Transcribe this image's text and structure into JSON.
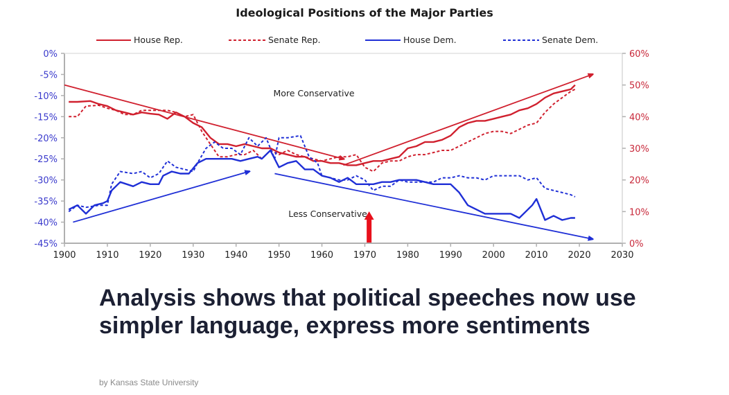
{
  "article": {
    "headline": "Analysis shows that political speeches now use simpler language, express more sentiments",
    "byline": "by Kansas State University"
  },
  "colors": {
    "republican": "#d0202e",
    "democrat": "#1f2fd6",
    "left_axis_text": "#3a3acc",
    "right_axis_text": "#c8283a",
    "axis": "#b0b0b0",
    "marker_arrow": "#e8101c"
  },
  "chart_data": {
    "type": "line",
    "title": "Ideological Positions of the Major Parties",
    "xlabel": "",
    "ylabel": "",
    "xlim": [
      1900,
      2030
    ],
    "ylim_left": [
      -45,
      0
    ],
    "ylim_right": [
      0,
      60
    ],
    "x_ticks": [
      "1900",
      "1910",
      "1920",
      "1930",
      "1940",
      "1950",
      "1960",
      "1970",
      "1980",
      "1990",
      "2000",
      "2010",
      "2020",
      "2030"
    ],
    "y_ticks_left": [
      "0%",
      "-5%",
      "-10%",
      "-15%",
      "-20%",
      "-25%",
      "-30%",
      "-35%",
      "-40%",
      "-45%"
    ],
    "y_ticks_right": [
      "60%",
      "50%",
      "40%",
      "30%",
      "20%",
      "10%",
      "0%"
    ],
    "grid": false,
    "legend_position": "top",
    "legend": [
      {
        "name": "House Rep.",
        "style": "solid",
        "party": "rep"
      },
      {
        "name": "Senate Rep.",
        "style": "dashed",
        "party": "rep"
      },
      {
        "name": "House Dem.",
        "style": "solid",
        "party": "dem"
      },
      {
        "name": "Senate Dem.",
        "style": "dashed",
        "party": "dem"
      }
    ],
    "series": [
      {
        "name": "House Rep.",
        "style": "solid",
        "party": "rep",
        "x": [
          1901,
          1903,
          1906,
          1908,
          1910,
          1912,
          1914,
          1916,
          1918,
          1920,
          1922,
          1924,
          1926,
          1928,
          1930,
          1932,
          1934,
          1936,
          1938,
          1940,
          1942,
          1944,
          1946,
          1948,
          1950,
          1952,
          1954,
          1956,
          1958,
          1960,
          1962,
          1964,
          1966,
          1968,
          1970,
          1972,
          1974,
          1976,
          1978,
          1980,
          1982,
          1984,
          1986,
          1988,
          1990,
          1992,
          1994,
          1996,
          1998,
          2000,
          2002,
          2004,
          2006,
          2008,
          2010,
          2012,
          2014,
          2016,
          2018,
          2019
        ],
        "y": [
          -11.5,
          -11.5,
          -11.3,
          -12,
          -12.5,
          -13.5,
          -14,
          -14.5,
          -14,
          -14.3,
          -14.5,
          -15.5,
          -14,
          -15,
          -16.5,
          -17.5,
          -20,
          -21.5,
          -21.5,
          -22,
          -21.5,
          -22,
          -22.5,
          -22.5,
          -23.5,
          -24,
          -24.5,
          -24.5,
          -25.5,
          -25.5,
          -26,
          -26,
          -26.5,
          -26.5,
          -26,
          -25.5,
          -25.5,
          -25,
          -24.5,
          -22.5,
          -22,
          -21,
          -21,
          -20.5,
          -19.5,
          -17.5,
          -16.5,
          -16,
          -16,
          -15.5,
          -15,
          -14.5,
          -13.5,
          -13,
          -12,
          -10.5,
          -9.5,
          -9,
          -8.5,
          -7.5
        ]
      },
      {
        "name": "Senate Rep.",
        "style": "dashed",
        "party": "rep",
        "x": [
          1901,
          1903,
          1905,
          1908,
          1910,
          1912,
          1914,
          1916,
          1918,
          1920,
          1922,
          1924,
          1926,
          1928,
          1930,
          1932,
          1934,
          1936,
          1938,
          1940,
          1942,
          1944,
          1946,
          1948,
          1950,
          1952,
          1954,
          1956,
          1958,
          1960,
          1962,
          1964,
          1966,
          1968,
          1970,
          1972,
          1974,
          1976,
          1978,
          1980,
          1982,
          1984,
          1986,
          1988,
          1990,
          1992,
          1994,
          1996,
          1998,
          2000,
          2002,
          2004,
          2006,
          2008,
          2010,
          2012,
          2014,
          2016,
          2018,
          2019
        ],
        "y": [
          -15,
          -15,
          -12.5,
          -12.3,
          -13,
          -13.5,
          -14.5,
          -14.5,
          -13.5,
          -13.5,
          -13.5,
          -13.5,
          -14,
          -15,
          -14.5,
          -18.5,
          -21.5,
          -24.5,
          -24.5,
          -24,
          -24,
          -23,
          -25,
          -23,
          -24,
          -23,
          -24,
          -24.5,
          -25,
          -25.5,
          -25,
          -24.5,
          -24.5,
          -24,
          -27,
          -28,
          -26,
          -25.5,
          -25.5,
          -24.5,
          -24,
          -24,
          -23.5,
          -23,
          -23,
          -22,
          -21,
          -20,
          -19,
          -18.5,
          -18.5,
          -19,
          -18,
          -17,
          -16.5,
          -14,
          -12,
          -10.5,
          -9,
          -8.5
        ]
      },
      {
        "name": "House Dem.",
        "style": "solid",
        "party": "dem",
        "x": [
          1901,
          1903,
          1905,
          1907,
          1909,
          1910,
          1911,
          1913,
          1916,
          1918,
          1920,
          1922,
          1923,
          1925,
          1927,
          1929,
          1931,
          1933,
          1935,
          1937,
          1939,
          1941,
          1943,
          1945,
          1946,
          1948,
          1950,
          1952,
          1954,
          1956,
          1958,
          1960,
          1962,
          1964,
          1966,
          1968,
          1970,
          1972,
          1974,
          1976,
          1978,
          1980,
          1982,
          1984,
          1986,
          1988,
          1990,
          1992,
          1994,
          1996,
          1998,
          2000,
          2002,
          2004,
          2006,
          2008,
          2009,
          2010,
          2012,
          2014,
          2016,
          2018,
          2019
        ],
        "y": [
          -37,
          -36,
          -38,
          -36,
          -35.5,
          -35,
          -32.5,
          -30.5,
          -31.5,
          -30.5,
          -31,
          -31,
          -29,
          -28,
          -28.5,
          -28.5,
          -26,
          -25,
          -25,
          -25,
          -25,
          -25.5,
          -25,
          -24.5,
          -25,
          -23,
          -27,
          -26,
          -25.5,
          -27.5,
          -27.5,
          -29,
          -29.5,
          -30.5,
          -29.5,
          -31,
          -31,
          -31,
          -30.5,
          -30.5,
          -30,
          -30,
          -30,
          -30.5,
          -31,
          -31,
          -31,
          -33,
          -36,
          -37,
          -38,
          -38,
          -38,
          -38,
          -39,
          -37,
          -36,
          -34.5,
          -39.5,
          -38.5,
          -39.5,
          -39,
          -39
        ]
      },
      {
        "name": "Senate Dem.",
        "style": "dashed",
        "party": "dem",
        "x": [
          1901,
          1903,
          1905,
          1908,
          1910,
          1911,
          1913,
          1916,
          1918,
          1920,
          1922,
          1924,
          1926,
          1928,
          1930,
          1931,
          1933,
          1935,
          1937,
          1939,
          1941,
          1943,
          1945,
          1947,
          1949,
          1950,
          1952,
          1955,
          1957,
          1959,
          1960,
          1962,
          1964,
          1966,
          1968,
          1970,
          1972,
          1974,
          1976,
          1978,
          1980,
          1982,
          1984,
          1986,
          1988,
          1990,
          1992,
          1994,
          1996,
          1998,
          2000,
          2002,
          2004,
          2006,
          2008,
          2010,
          2012,
          2014,
          2016,
          2018,
          2019
        ],
        "y": [
          -37.5,
          -36,
          -36.5,
          -36,
          -36,
          -31,
          -28,
          -28.5,
          -28,
          -29.5,
          -28.5,
          -25.5,
          -27,
          -27.5,
          -28,
          -26,
          -22.5,
          -21,
          -22.5,
          -22.5,
          -24,
          -20,
          -22,
          -20,
          -25,
          -20,
          -20,
          -19.5,
          -24.5,
          -26,
          -29,
          -29.5,
          -30,
          -30,
          -29,
          -30,
          -32.5,
          -31.5,
          -31.5,
          -30,
          -30.5,
          -30.5,
          -30.5,
          -30.5,
          -29.5,
          -29.5,
          -29,
          -29.5,
          -29.5,
          -30,
          -29,
          -29,
          -29,
          -29,
          -30,
          -29.5,
          -32,
          -32.5,
          -33,
          -33.5,
          -34
        ]
      }
    ],
    "annotations": [
      {
        "text": "More Conservative",
        "x": 1955,
        "y": -10.5
      },
      {
        "text": "Less Conservative",
        "x": 1956,
        "y": -38.5
      }
    ],
    "trend_arrows": [
      {
        "party": "rep",
        "from": [
          1900,
          -7.5
        ],
        "to": [
          1965,
          -25
        ]
      },
      {
        "party": "rep",
        "from": [
          1965,
          -26.5
        ],
        "to": [
          2023,
          -5
        ]
      },
      {
        "party": "dem",
        "from": [
          1902,
          -40
        ],
        "to": [
          1943,
          -28
        ]
      },
      {
        "party": "dem",
        "from": [
          1949,
          -28.5
        ],
        "to": [
          2023,
          -44
        ]
      }
    ],
    "marker_arrow": {
      "x": 1971,
      "label": ""
    }
  }
}
